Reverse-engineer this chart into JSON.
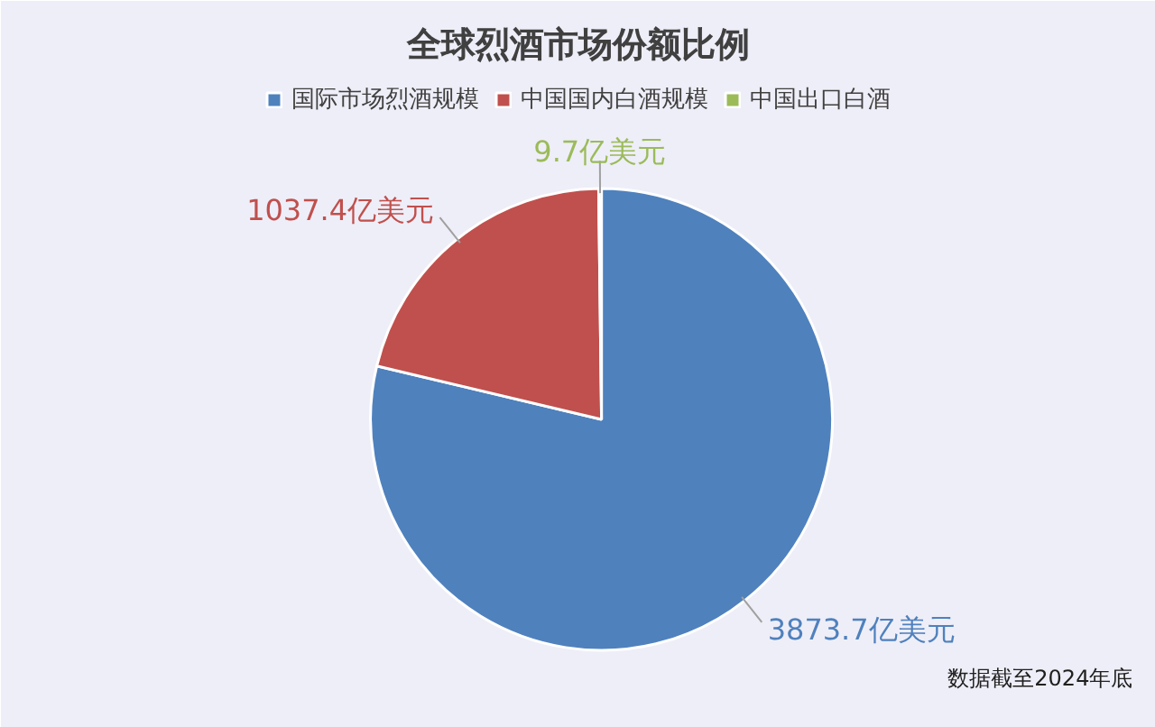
{
  "chart_data": {
    "type": "pie",
    "title": "全球烈酒市场份额比例",
    "categories": [
      "国际市场烈酒规模",
      "中国国内白酒规模",
      "中国出口白酒"
    ],
    "values": [
      3873.7,
      1037.4,
      9.7
    ],
    "colors": [
      "#4f81bd",
      "#c0504d",
      "#9bbb59"
    ],
    "value_labels": [
      "3873.7亿美元",
      "1037.4亿美元",
      "9.7亿美元"
    ],
    "legend": "top",
    "annotations": [
      "数据截至2024年底"
    ]
  }
}
